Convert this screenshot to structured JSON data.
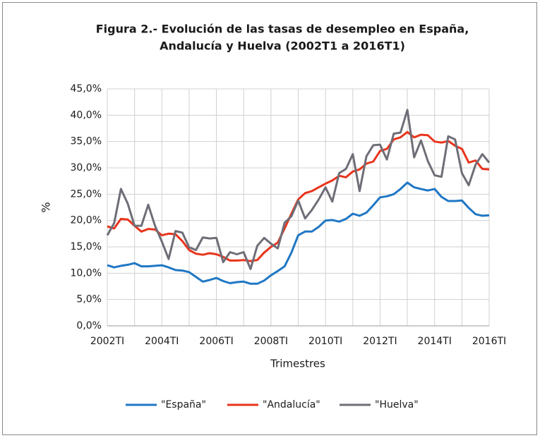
{
  "chart_data": {
    "type": "line",
    "title": [
      "Figura 2.- Evolución de las tasas de desempleo en España,",
      "Andalucía y Huelva (2002T1 a 2016T1)"
    ],
    "x_label": "Trimestres",
    "y_label": "%",
    "categories": [
      "2002TI",
      null,
      null,
      null,
      null,
      null,
      null,
      null,
      "2004TI",
      null,
      null,
      null,
      null,
      null,
      null,
      null,
      "2006TI",
      null,
      null,
      null,
      null,
      null,
      null,
      null,
      "2008TI",
      null,
      null,
      null,
      null,
      null,
      null,
      null,
      "2010TI",
      null,
      null,
      null,
      null,
      null,
      null,
      null,
      "2012TI",
      null,
      null,
      null,
      null,
      null,
      null,
      null,
      "2014TI",
      null,
      null,
      null,
      null,
      null,
      null,
      null,
      "2016TI"
    ],
    "series": [
      {
        "name": "\"España\"",
        "color": "#1f77c4",
        "values": [
          11.5,
          11.1,
          11.4,
          11.6,
          11.9,
          11.3,
          11.3,
          11.4,
          11.5,
          11.1,
          10.6,
          10.5,
          10.2,
          9.3,
          8.4,
          8.7,
          9.1,
          8.5,
          8.1,
          8.3,
          8.4,
          8.0,
          8.0,
          8.6,
          9.6,
          10.4,
          11.3,
          13.9,
          17.2,
          17.9,
          17.9,
          18.8,
          20.0,
          20.1,
          19.8,
          20.3,
          21.3,
          20.9,
          21.5,
          22.9,
          24.4,
          24.6,
          25.0,
          26.0,
          27.2,
          26.3,
          26.0,
          25.7,
          26.0,
          24.5,
          23.7,
          23.7,
          23.8,
          22.4,
          21.2,
          20.9,
          21.0
        ]
      },
      {
        "name": "\"Andalucía\"",
        "color": "#e8341c",
        "values": [
          18.9,
          18.5,
          20.3,
          20.2,
          19.0,
          17.9,
          18.4,
          18.3,
          17.2,
          17.5,
          17.4,
          16.1,
          14.4,
          13.7,
          13.5,
          13.8,
          13.6,
          13.1,
          12.4,
          12.4,
          12.5,
          12.3,
          12.5,
          13.9,
          15.0,
          15.8,
          18.5,
          21.3,
          24.0,
          25.2,
          25.6,
          26.3,
          27.0,
          27.6,
          28.5,
          28.2,
          29.3,
          29.7,
          30.8,
          31.2,
          33.2,
          33.6,
          35.4,
          35.8,
          36.8,
          35.8,
          36.3,
          36.2,
          35.0,
          34.8,
          35.1,
          34.2,
          33.6,
          31.0,
          31.4,
          29.8,
          29.7
        ]
      },
      {
        "name": "\"Huelva\"",
        "color": "#6e6e78",
        "values": [
          17.2,
          19.5,
          26.0,
          23.2,
          19.0,
          19.0,
          23.0,
          19.0,
          16.0,
          12.7,
          18.0,
          17.7,
          14.9,
          14.4,
          16.8,
          16.6,
          16.7,
          12.1,
          14.0,
          13.6,
          14.0,
          10.8,
          15.2,
          16.7,
          15.6,
          14.7,
          19.6,
          20.8,
          23.8,
          20.4,
          22.0,
          24.0,
          26.3,
          23.6,
          29.0,
          29.8,
          32.6,
          25.6,
          32.2,
          34.3,
          34.4,
          31.6,
          36.5,
          36.7,
          41.0,
          32.0,
          35.2,
          31.3,
          28.6,
          28.3,
          36.0,
          35.4,
          29.0,
          26.7,
          30.6,
          32.6,
          31.0
        ]
      }
    ],
    "ylim": [
      0,
      45
    ],
    "yticks": [
      {
        "value": 0,
        "label": "0,0%"
      },
      {
        "value": 5,
        "label": "5,0%"
      },
      {
        "value": 10,
        "label": "10,0%"
      },
      {
        "value": 15,
        "label": "15,0%"
      },
      {
        "value": 20,
        "label": "20,0%"
      },
      {
        "value": 25,
        "label": "25,0%"
      },
      {
        "value": 30,
        "label": "30,0%"
      },
      {
        "value": 35,
        "label": "35,0%"
      },
      {
        "value": 40,
        "label": "40,0%"
      },
      {
        "value": 45,
        "label": "45,0%"
      }
    ],
    "grid": true,
    "legend": "bottom"
  }
}
